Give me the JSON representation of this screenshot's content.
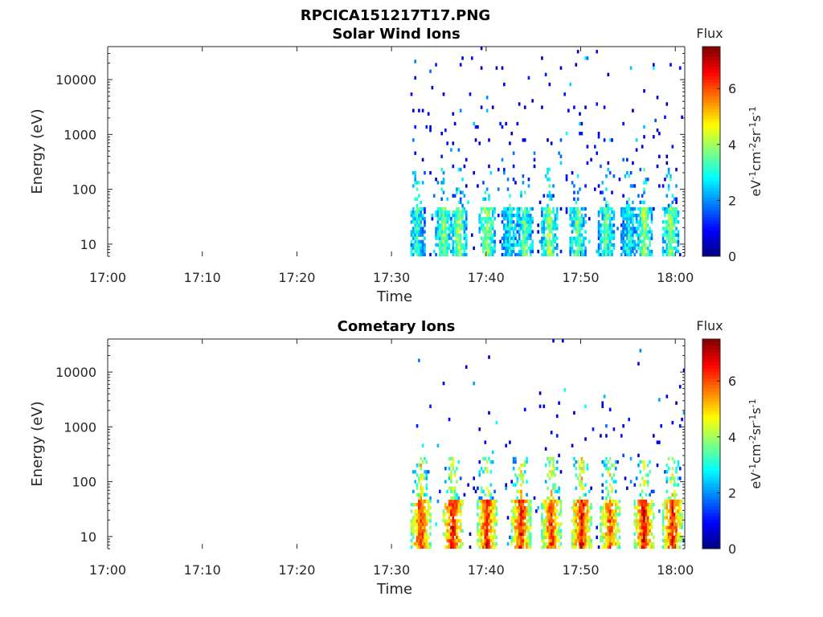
{
  "figure": {
    "title": "RPCICA151217T17.PNG"
  },
  "chart_data": [
    {
      "type": "heatmap",
      "title": "Solar Wind Ions",
      "xlabel": "Time",
      "ylabel": "Energy (eV)",
      "x_ticks": [
        "17:00",
        "17:10",
        "17:20",
        "17:30",
        "17:40",
        "17:50",
        "18:00"
      ],
      "x_range": [
        "17:00",
        "18:01"
      ],
      "y_scale": "log",
      "y_ticks": [
        10,
        100,
        1000,
        10000
      ],
      "y_tick_labels": [
        "10",
        "100",
        "1000",
        "10000"
      ],
      "y_range": [
        6,
        40000
      ],
      "data_start": "17:32",
      "colorbar": {
        "title": "Flux",
        "label": "eV-1cm-2sr-1s-1",
        "ticks": [
          0,
          2,
          4,
          6
        ],
        "range": [
          0,
          7.5
        ]
      },
      "bursts": [
        {
          "time": "17:32.6",
          "flux": 3.2
        },
        {
          "time": "17:35.4",
          "flux": 3.8
        },
        {
          "time": "17:37.0",
          "flux": 4.0
        },
        {
          "time": "17:40.0",
          "flux": 3.9
        },
        {
          "time": "17:42.4",
          "flux": 3.0
        },
        {
          "time": "17:44.0",
          "flux": 3.5
        },
        {
          "time": "17:46.6",
          "flux": 3.9
        },
        {
          "time": "17:49.6",
          "flux": 3.6
        },
        {
          "time": "17:52.6",
          "flux": 3.4
        },
        {
          "time": "17:55.0",
          "flux": 3.0
        },
        {
          "time": "17:56.6",
          "flux": 3.9
        },
        {
          "time": "17:59.4",
          "flux": 3.8
        }
      ]
    },
    {
      "type": "heatmap",
      "title": "Cometary Ions",
      "xlabel": "Time",
      "ylabel": "Energy (eV)",
      "x_ticks": [
        "17:00",
        "17:10",
        "17:20",
        "17:30",
        "17:40",
        "17:50",
        "18:00"
      ],
      "x_range": [
        "17:00",
        "18:01"
      ],
      "y_scale": "log",
      "y_ticks": [
        10,
        100,
        1000,
        10000
      ],
      "y_tick_labels": [
        "10",
        "100",
        "1000",
        "10000"
      ],
      "y_range": [
        6,
        40000
      ],
      "data_start": "17:32",
      "colorbar": {
        "title": "Flux",
        "label": "eV-1cm-2sr-1s-1",
        "ticks": [
          0,
          2,
          4,
          6
        ],
        "range": [
          0,
          7.5
        ]
      },
      "bursts": [
        {
          "time": "17:33.0",
          "flux": 6.3
        },
        {
          "time": "17:36.4",
          "flux": 6.6
        },
        {
          "time": "17:40.0",
          "flux": 6.4
        },
        {
          "time": "17:43.6",
          "flux": 6.5
        },
        {
          "time": "17:46.8",
          "flux": 6.2
        },
        {
          "time": "17:50.0",
          "flux": 6.6
        },
        {
          "time": "17:53.0",
          "flux": 6.0
        },
        {
          "time": "17:56.6",
          "flux": 6.6
        },
        {
          "time": "17:59.6",
          "flux": 6.4
        }
      ]
    }
  ]
}
